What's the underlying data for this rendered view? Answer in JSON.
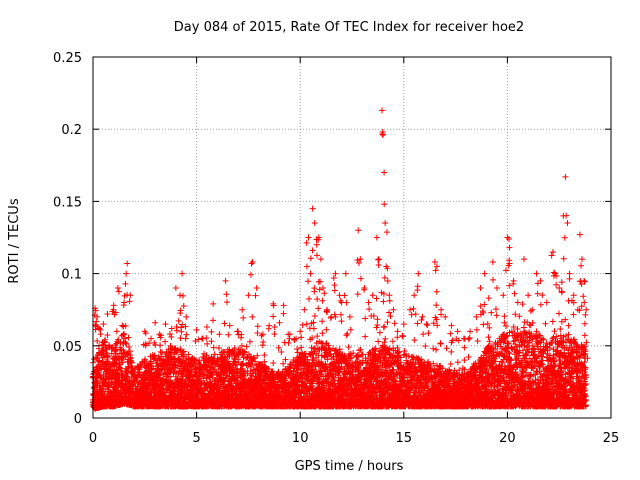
{
  "chart_data": {
    "type": "scatter",
    "title": "Day 084 of 2015, Rate Of TEC Index for receiver hoe2",
    "xlabel": "GPS time / hours",
    "ylabel": "ROTI / TECUs",
    "xlim": [
      0,
      25
    ],
    "ylim": [
      0,
      0.25
    ],
    "x_ticks": [
      0,
      5,
      10,
      15,
      20,
      25
    ],
    "y_ticks": [
      0,
      0.05,
      0.1,
      0.15,
      0.2,
      0.25
    ],
    "x_tick_labels": [
      "0",
      "5",
      "10",
      "15",
      "20",
      "25"
    ],
    "y_tick_labels": [
      "0",
      "0.05",
      "0.1",
      "0.15",
      "0.2",
      "0.25"
    ],
    "grid": true,
    "marker": "+",
    "color": "#ff0000",
    "series": [
      {
        "name": "ROTI",
        "points": [
          [
            0.1,
            0.076
          ],
          [
            0.2,
            0.07
          ],
          [
            0.3,
            0.062
          ],
          [
            0.5,
            0.065
          ],
          [
            0.7,
            0.072
          ],
          [
            1.0,
            0.078
          ],
          [
            1.1,
            0.073
          ],
          [
            1.2,
            0.09
          ],
          [
            1.5,
            0.08
          ],
          [
            1.6,
            0.1
          ],
          [
            1.65,
            0.107
          ],
          [
            1.8,
            0.085
          ],
          [
            2.5,
            0.06
          ],
          [
            2.8,
            0.055
          ],
          [
            3.0,
            0.066
          ],
          [
            3.2,
            0.058
          ],
          [
            3.5,
            0.065
          ],
          [
            3.8,
            0.062
          ],
          [
            4.0,
            0.09
          ],
          [
            4.2,
            0.085
          ],
          [
            4.3,
            0.1
          ],
          [
            4.5,
            0.07
          ],
          [
            5.0,
            0.061
          ],
          [
            5.3,
            0.055
          ],
          [
            5.5,
            0.063
          ],
          [
            5.8,
            0.079
          ],
          [
            6.1,
            0.058
          ],
          [
            6.4,
            0.095
          ],
          [
            6.6,
            0.064
          ],
          [
            7.0,
            0.06
          ],
          [
            7.2,
            0.075
          ],
          [
            7.5,
            0.085
          ],
          [
            7.7,
            0.108
          ],
          [
            7.9,
            0.09
          ],
          [
            8.2,
            0.058
          ],
          [
            8.5,
            0.064
          ],
          [
            8.7,
            0.079
          ],
          [
            9.0,
            0.066
          ],
          [
            9.2,
            0.078
          ],
          [
            9.5,
            0.058
          ],
          [
            9.8,
            0.055
          ],
          [
            10.0,
            0.06
          ],
          [
            10.2,
            0.075
          ],
          [
            10.4,
            0.125
          ],
          [
            10.5,
            0.1
          ],
          [
            10.6,
            0.145
          ],
          [
            10.7,
            0.135
          ],
          [
            10.8,
            0.12
          ],
          [
            10.9,
            0.125
          ],
          [
            11.0,
            0.11
          ],
          [
            11.1,
            0.09
          ],
          [
            11.3,
            0.075
          ],
          [
            11.5,
            0.07
          ],
          [
            11.7,
            0.1
          ],
          [
            11.9,
            0.085
          ],
          [
            12.0,
            0.08
          ],
          [
            12.2,
            0.1
          ],
          [
            12.4,
            0.07
          ],
          [
            12.8,
            0.13
          ],
          [
            12.9,
            0.11
          ],
          [
            13.1,
            0.09
          ],
          [
            13.3,
            0.08
          ],
          [
            13.5,
            0.085
          ],
          [
            13.7,
            0.125
          ],
          [
            13.8,
            0.11
          ],
          [
            13.95,
            0.213
          ],
          [
            14.0,
            0.196
          ],
          [
            14.05,
            0.17
          ],
          [
            14.1,
            0.135
          ],
          [
            14.15,
            0.105
          ],
          [
            14.3,
            0.085
          ],
          [
            14.5,
            0.075
          ],
          [
            14.7,
            0.06
          ],
          [
            15.0,
            0.065
          ],
          [
            15.3,
            0.075
          ],
          [
            15.5,
            0.085
          ],
          [
            15.7,
            0.1
          ],
          [
            15.9,
            0.07
          ],
          [
            16.1,
            0.065
          ],
          [
            16.5,
            0.108
          ],
          [
            16.6,
            0.105
          ],
          [
            16.8,
            0.075
          ],
          [
            17.0,
            0.07
          ],
          [
            17.3,
            0.064
          ],
          [
            17.6,
            0.06
          ],
          [
            17.9,
            0.055
          ],
          [
            18.2,
            0.06
          ],
          [
            18.5,
            0.07
          ],
          [
            18.7,
            0.09
          ],
          [
            18.9,
            0.1
          ],
          [
            19.1,
            0.083
          ],
          [
            19.3,
            0.108
          ],
          [
            19.5,
            0.09
          ],
          [
            19.8,
            0.085
          ],
          [
            20.0,
            0.125
          ],
          [
            20.1,
            0.118
          ],
          [
            20.3,
            0.095
          ],
          [
            20.5,
            0.08
          ],
          [
            20.8,
            0.11
          ],
          [
            21.0,
            0.085
          ],
          [
            21.2,
            0.075
          ],
          [
            21.4,
            0.1
          ],
          [
            21.6,
            0.095
          ],
          [
            21.9,
            0.08
          ],
          [
            22.2,
            0.115
          ],
          [
            22.3,
            0.1
          ],
          [
            22.5,
            0.09
          ],
          [
            22.7,
            0.14
          ],
          [
            22.8,
            0.167
          ],
          [
            22.9,
            0.135
          ],
          [
            23.0,
            0.1
          ],
          [
            23.2,
            0.085
          ],
          [
            23.4,
            0.075
          ],
          [
            23.5,
            0.127
          ],
          [
            23.6,
            0.11
          ],
          [
            23.7,
            0.095
          ],
          [
            23.8,
            0.075
          ]
        ],
        "baseline_band": [
          [
            0.0,
            0.006,
            0.04
          ],
          [
            0.5,
            0.008,
            0.055
          ],
          [
            1.0,
            0.008,
            0.05
          ],
          [
            1.5,
            0.01,
            0.06
          ],
          [
            2.0,
            0.008,
            0.035
          ],
          [
            3.0,
            0.008,
            0.045
          ],
          [
            4.0,
            0.008,
            0.05
          ],
          [
            5.0,
            0.008,
            0.04
          ],
          [
            6.0,
            0.008,
            0.045
          ],
          [
            7.0,
            0.008,
            0.05
          ],
          [
            8.0,
            0.008,
            0.04
          ],
          [
            9.0,
            0.008,
            0.03
          ],
          [
            10.0,
            0.008,
            0.045
          ],
          [
            11.0,
            0.008,
            0.055
          ],
          [
            12.0,
            0.008,
            0.045
          ],
          [
            13.0,
            0.008,
            0.045
          ],
          [
            14.0,
            0.008,
            0.05
          ],
          [
            15.0,
            0.008,
            0.045
          ],
          [
            16.0,
            0.008,
            0.04
          ],
          [
            17.0,
            0.008,
            0.035
          ],
          [
            18.0,
            0.008,
            0.03
          ],
          [
            19.0,
            0.008,
            0.05
          ],
          [
            20.0,
            0.008,
            0.06
          ],
          [
            21.0,
            0.008,
            0.06
          ],
          [
            22.0,
            0.008,
            0.055
          ],
          [
            23.0,
            0.008,
            0.06
          ],
          [
            23.8,
            0.008,
            0.05
          ]
        ]
      }
    ]
  }
}
